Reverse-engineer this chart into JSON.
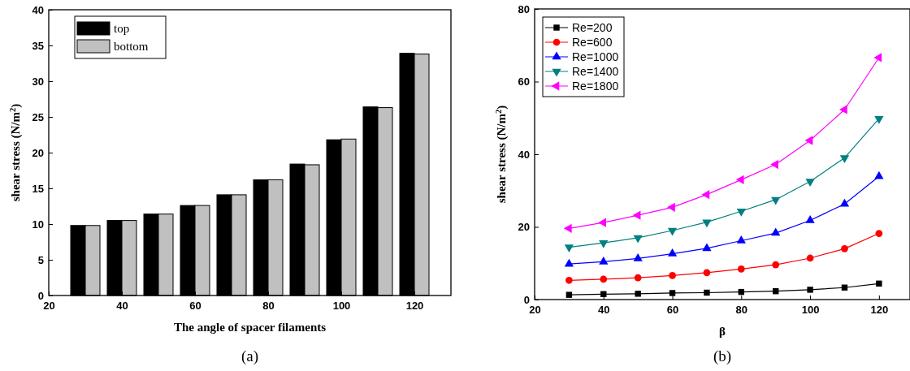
{
  "chart_data": [
    {
      "type": "bar",
      "xlabel": "The angle of spacer filaments",
      "ylabel": "shear stress (N/m$^{2}$)",
      "x": [
        30,
        40,
        50,
        60,
        70,
        80,
        90,
        100,
        110,
        120
      ],
      "xlim": [
        20,
        130
      ],
      "xticks": [
        20,
        40,
        60,
        80,
        100,
        120
      ],
      "ylim": [
        0,
        40
      ],
      "yticks": [
        0,
        5,
        10,
        15,
        20,
        25,
        30,
        35,
        40
      ],
      "legend": "top left",
      "grid": false,
      "annotations": [
        "(a)"
      ],
      "series": [
        {
          "name": "top",
          "color": "#000000",
          "values": [
            9.8,
            10.5,
            11.4,
            12.6,
            14.1,
            16.2,
            18.4,
            21.8,
            26.4,
            33.9
          ]
        },
        {
          "name": "bottom",
          "color": "#c0c0c0",
          "values": [
            9.8,
            10.5,
            11.4,
            12.6,
            14.1,
            16.2,
            18.3,
            21.9,
            26.3,
            33.8
          ]
        }
      ]
    },
    {
      "type": "line",
      "xlabel": "β",
      "ylabel": "shear stress (N/m$^{2}$)",
      "x": [
        30,
        40,
        50,
        60,
        70,
        80,
        90,
        100,
        110,
        120
      ],
      "xlim": [
        20,
        129
      ],
      "xticks": [
        20,
        40,
        60,
        80,
        100,
        120
      ],
      "ylim": [
        0,
        80
      ],
      "yticks": [
        0,
        20,
        40,
        60,
        80
      ],
      "legend": "top left",
      "grid": false,
      "line_style": "solid",
      "annotations": [
        "(b)"
      ],
      "series": [
        {
          "name": "Re=200",
          "color": "#000000",
          "marker": "square",
          "values": [
            1.3,
            1.5,
            1.6,
            1.8,
            1.9,
            2.1,
            2.3,
            2.7,
            3.3,
            4.4
          ]
        },
        {
          "name": "Re=600",
          "color": "#ff0000",
          "marker": "circle",
          "values": [
            5.3,
            5.6,
            6.0,
            6.6,
            7.4,
            8.4,
            9.6,
            11.4,
            14.0,
            18.2
          ]
        },
        {
          "name": "Re=1000",
          "color": "#0000ff",
          "marker": "triangle",
          "values": [
            9.8,
            10.4,
            11.3,
            12.6,
            14.1,
            16.2,
            18.3,
            21.8,
            26.3,
            33.9
          ]
        },
        {
          "name": "Re=1400",
          "color": "#008080",
          "marker": "triangle-down",
          "values": [
            14.4,
            15.6,
            17.0,
            19.0,
            21.3,
            24.3,
            27.5,
            32.5,
            39.0,
            49.8
          ]
        },
        {
          "name": "Re=1800",
          "color": "#ff00ff",
          "marker": "triangle-left",
          "values": [
            19.6,
            21.2,
            23.2,
            25.4,
            28.9,
            33.0,
            37.2,
            43.8,
            52.3,
            66.6
          ]
        }
      ]
    }
  ]
}
